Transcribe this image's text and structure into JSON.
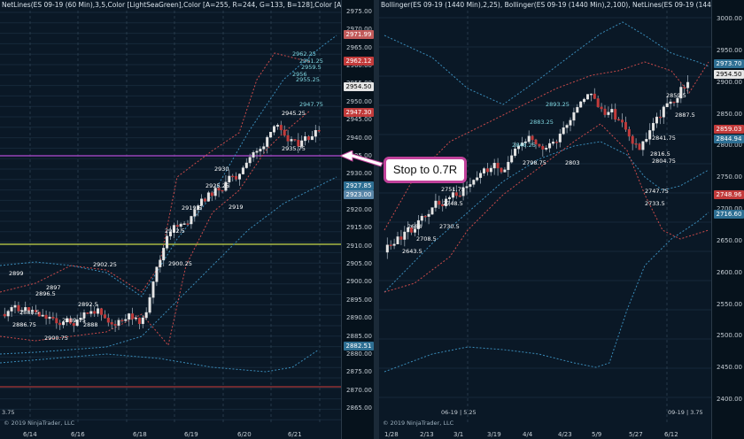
{
  "left_chart": {
    "header": "NetLines(ES 09-19 (60 Min),3,5,Color [LightSeaGreen],Color [A=255, R=244, G=133, B=128],Color [A=255, R=0, G=131,",
    "price_axis": [
      "2975.00",
      "2970.00",
      "2965.00",
      "2960.00",
      "2955.00",
      "2950.00",
      "2945.00",
      "2940.00",
      "2935.00",
      "2930.00",
      "2925.00",
      "2920.00",
      "2915.00",
      "2910.00",
      "2905.00",
      "2900.00",
      "2895.00",
      "2890.00",
      "2885.00",
      "2880.00",
      "2875.00",
      "2870.00",
      "2865.00"
    ],
    "price_tags": [
      {
        "text": "2971.99",
        "color": "#c25a5a"
      },
      {
        "text": "2962.12",
        "color": "#c23b3b"
      },
      {
        "text": "2954.50",
        "color": "#e6e6e6"
      },
      {
        "text": "2947.30",
        "color": "#c23b3b"
      },
      {
        "text": "2927.85",
        "color": "#2e6f93"
      },
      {
        "text": "2923.00",
        "color": "#5a86a8"
      },
      {
        "text": "2882.51",
        "color": "#2e6f93"
      }
    ],
    "time_axis": [
      "6/14",
      "6/16",
      "6/18",
      "6/19",
      "6/20",
      "6/21"
    ],
    "copyright": "© 2019 NinjaTrader, LLC",
    "corner_label": "3.75",
    "labels": [
      "2962.25",
      "2961.25",
      "2959.5",
      "2956",
      "2955.25",
      "2947.75",
      "2945.25",
      "2935.75",
      "2930",
      "2925.25",
      "2919",
      "2919.5",
      "2912.5",
      "2900.25",
      "2902.25",
      "2899",
      "2897",
      "2896.5",
      "2892.5",
      "2889.75",
      "2888.5",
      "2886.75",
      "2888",
      "2900.75"
    ]
  },
  "right_chart": {
    "header": "Bollinger(ES 09-19 (1440 Min),2,25), Bollinger(ES 09-19 (1440 Min),2,100), NetLines(ES 09-19 (1440 Min),3,5,Color",
    "price_axis": [
      "3000.00",
      "2950.00",
      "2900.00",
      "2850.00",
      "2800.00",
      "2750.00",
      "2700.00",
      "2650.00",
      "2600.00",
      "2550.00",
      "2500.00",
      "2450.00",
      "2400.00"
    ],
    "price_tags": [
      {
        "text": "2973.70",
        "color": "#2e6f93"
      },
      {
        "text": "2954.50",
        "color": "#e6e6e6"
      },
      {
        "text": "2859.03",
        "color": "#c23b3b"
      },
      {
        "text": "2844.94",
        "color": "#2e6f93"
      },
      {
        "text": "2748.96",
        "color": "#c23b3b"
      },
      {
        "text": "2716.60",
        "color": "#2e6f93"
      }
    ],
    "time_axis": [
      "1/28",
      "2/13",
      "3/1",
      "3/19",
      "4/4",
      "4/23",
      "5/9",
      "5/27",
      "6/12"
    ],
    "copyright": "© 2019 NinjaTrader, LLC",
    "left_bottom_label": "06-19 | 5.25",
    "right_bottom_label": "09-19 | 3.75",
    "labels": [
      "2893.25",
      "2883.25",
      "2848.25",
      "2798.75",
      "2803",
      "2751.75",
      "2748.5",
      "2730.5",
      "2708.5",
      "2684",
      "2643.5",
      "2747.75",
      "2733.5",
      "2816.5",
      "2804.75",
      "2859.5",
      "2841.75",
      "2887.5"
    ]
  },
  "annotation": {
    "text": "Stop to 0.7R"
  },
  "colors": {
    "background": "#0a1826",
    "accent_magenta": "#c0419a",
    "band_red": "#c94a4a",
    "band_blue": "#3a8bb8",
    "yellow_line": "#c8d84a",
    "purple_line": "#b24bd6",
    "red_line": "#d23b3b"
  }
}
